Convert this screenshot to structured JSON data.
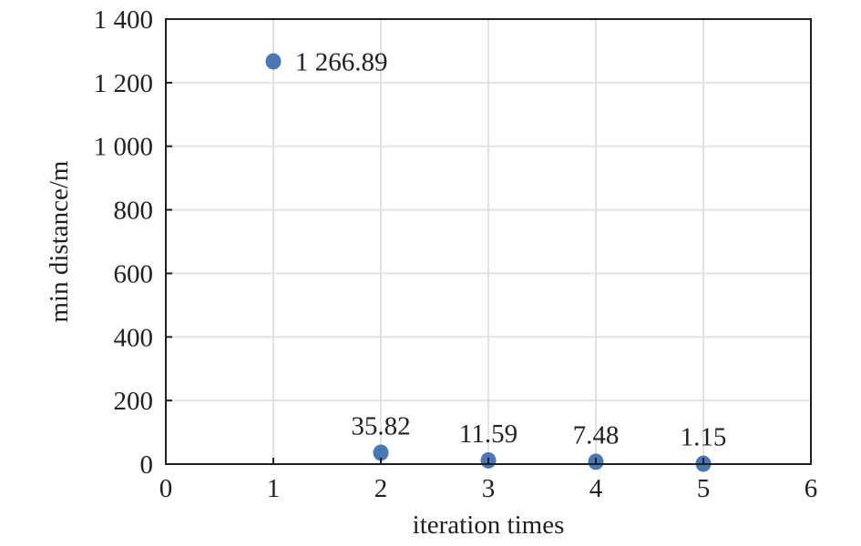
{
  "chart_data": {
    "type": "scatter",
    "title": "",
    "xlabel": "iteration times",
    "ylabel": "min distance/m",
    "xlim": [
      0,
      6
    ],
    "ylim": [
      0,
      1400
    ],
    "x_ticks": [
      0,
      1,
      2,
      3,
      4,
      5,
      6
    ],
    "x_tick_labels": [
      "0",
      "1",
      "2",
      "3",
      "4",
      "5",
      "6"
    ],
    "y_ticks": [
      0,
      200,
      400,
      600,
      800,
      1000,
      1200,
      1400
    ],
    "y_tick_labels": [
      "0",
      "200",
      "400",
      "600",
      "800",
      "1 000",
      "1 200",
      "1 400"
    ],
    "grid": true,
    "legend": "none",
    "marker_color": "#4a78b5",
    "series": [
      {
        "points": [
          {
            "x": 1,
            "y": 1266.89,
            "label": "1 266.89",
            "label_position": "right"
          },
          {
            "x": 2,
            "y": 35.82,
            "label": "35.82",
            "label_position": "above"
          },
          {
            "x": 3,
            "y": 11.59,
            "label": "11.59",
            "label_position": "above"
          },
          {
            "x": 4,
            "y": 7.48,
            "label": "7.48",
            "label_position": "above"
          },
          {
            "x": 5,
            "y": 1.15,
            "label": "1.15",
            "label_position": "above"
          }
        ]
      }
    ]
  }
}
